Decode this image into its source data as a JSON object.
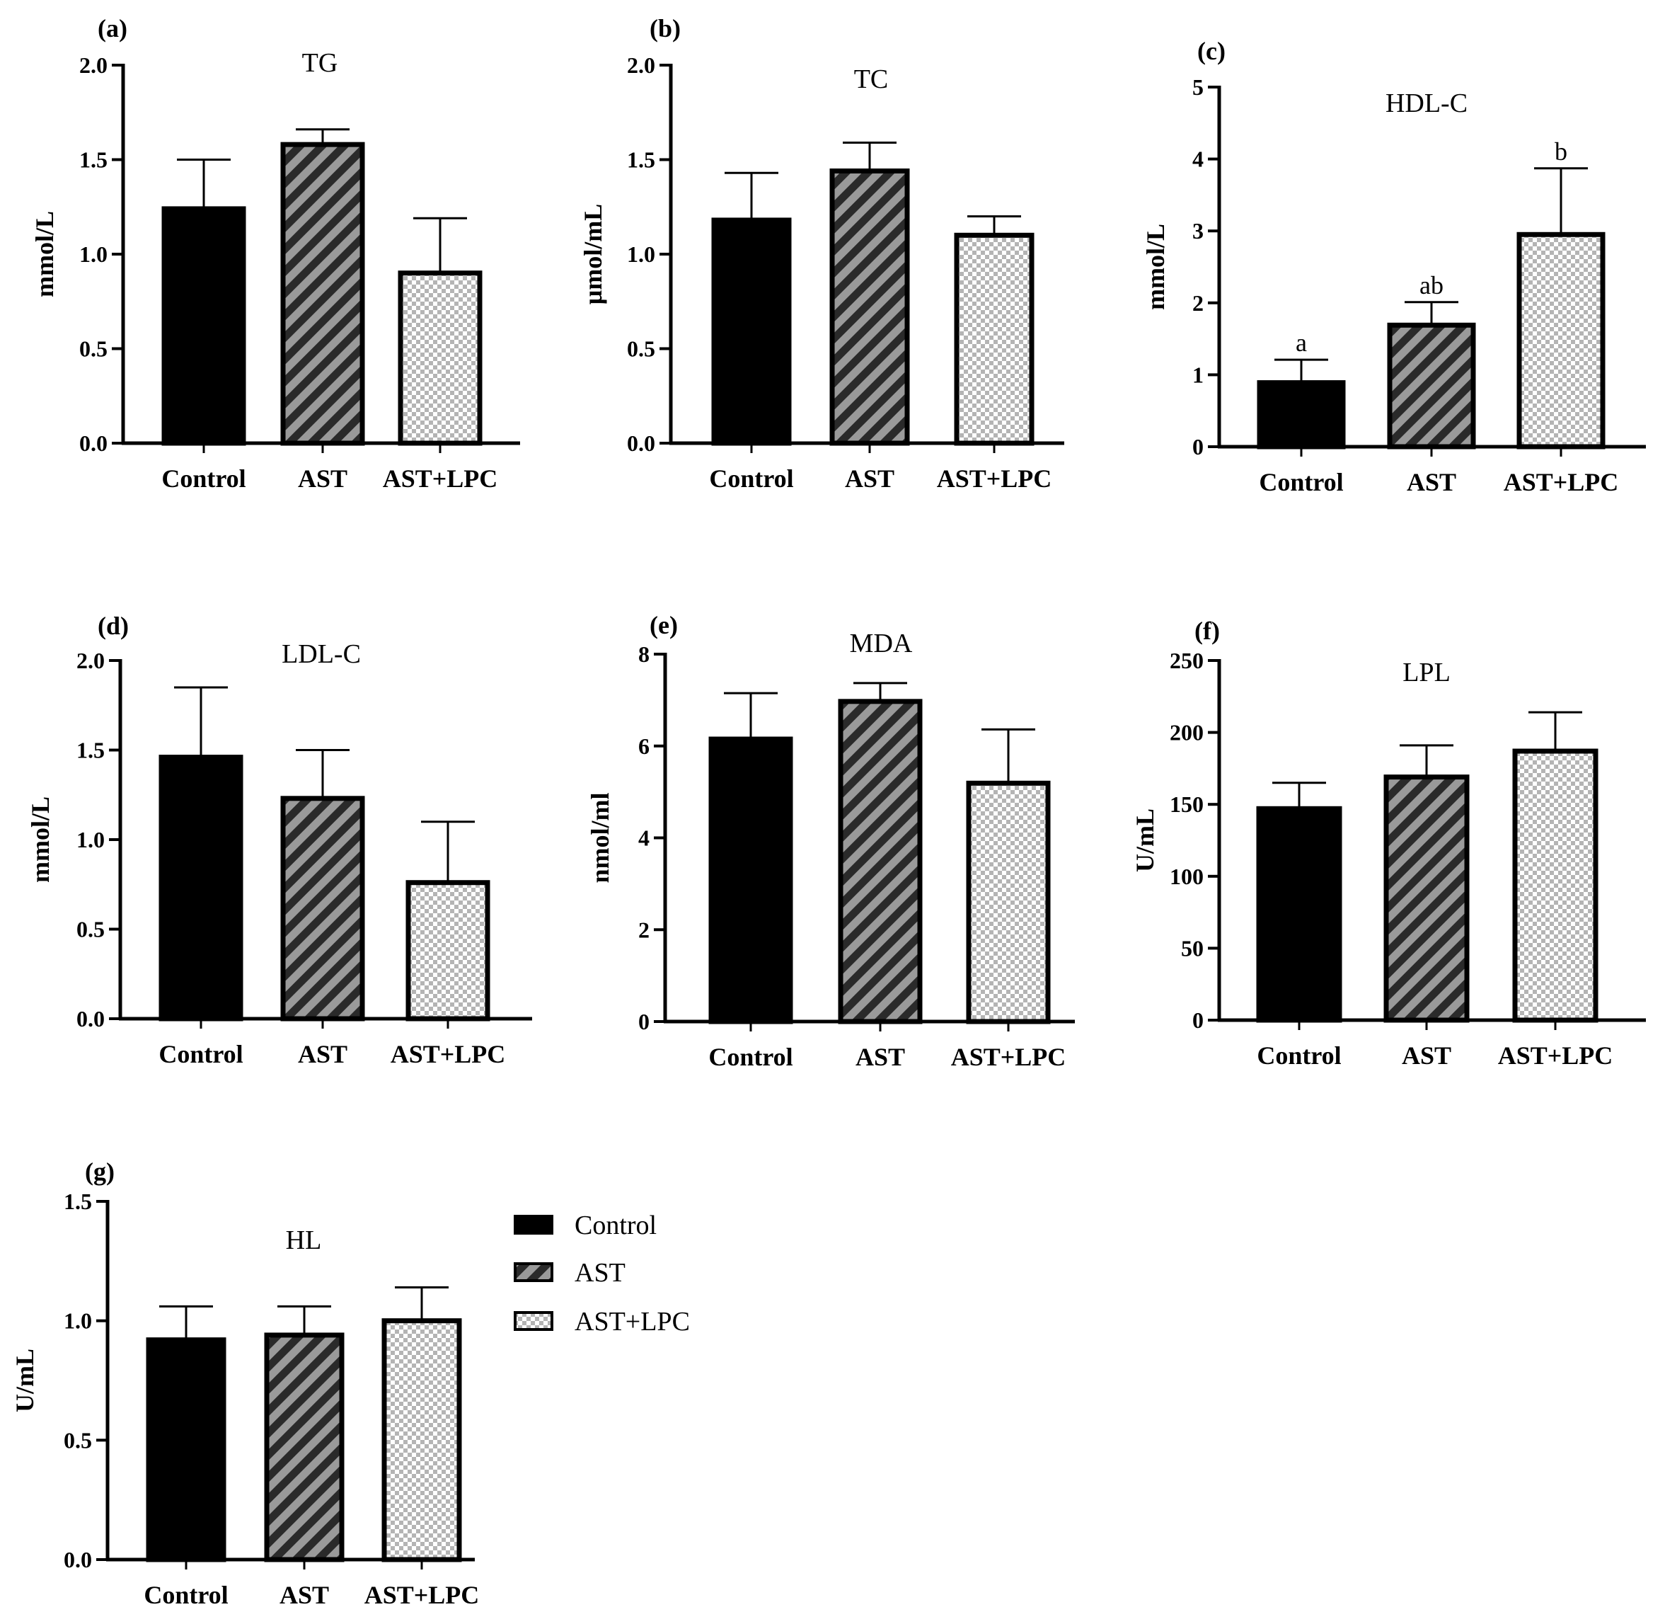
{
  "chart_data": [
    {
      "type": "bar",
      "panel": "(a)",
      "title": "TG",
      "ylabel": "mmol/L",
      "categories": [
        "Control",
        "AST",
        "AST+LPC"
      ],
      "values": [
        1.24,
        1.58,
        0.9
      ],
      "errors": [
        0.26,
        0.08,
        0.29
      ],
      "ylim": [
        0,
        2.0
      ],
      "yticks": [
        "0.0",
        "0.5",
        "1.0",
        "1.5",
        "2.0"
      ],
      "significance": []
    },
    {
      "type": "bar",
      "panel": "(b)",
      "title": "TC",
      "ylabel": "μmol/mL",
      "categories": [
        "Control",
        "AST",
        "AST+LPC"
      ],
      "values": [
        1.18,
        1.44,
        1.1
      ],
      "errors": [
        0.25,
        0.15,
        0.1
      ],
      "ylim": [
        0,
        2.0
      ],
      "yticks": [
        "0.0",
        "0.5",
        "1.0",
        "1.5",
        "2.0"
      ],
      "significance": []
    },
    {
      "type": "bar",
      "panel": "(c)",
      "title": "HDL-C",
      "ylabel": "mmol/L",
      "categories": [
        "Control",
        "AST",
        "AST+LPC"
      ],
      "values": [
        0.89,
        1.69,
        2.95
      ],
      "errors": [
        0.32,
        0.32,
        0.92
      ],
      "ylim": [
        0,
        5
      ],
      "yticks": [
        "0",
        "1",
        "2",
        "3",
        "4",
        "5"
      ],
      "significance": [
        "a",
        "ab",
        "b"
      ]
    },
    {
      "type": "bar",
      "panel": "(d)",
      "title": "LDL-C",
      "ylabel": "mmol/L",
      "categories": [
        "Control",
        "AST",
        "AST+LPC"
      ],
      "values": [
        1.46,
        1.23,
        0.76
      ],
      "errors": [
        0.39,
        0.27,
        0.34
      ],
      "ylim": [
        0,
        2.0
      ],
      "yticks": [
        "0.0",
        "0.5",
        "1.0",
        "1.5",
        "2.0"
      ],
      "significance": []
    },
    {
      "type": "bar",
      "panel": "(e)",
      "title": "MDA",
      "ylabel": "nmol/ml",
      "categories": [
        "Control",
        "AST",
        "AST+LPC"
      ],
      "values": [
        6.15,
        6.97,
        5.19
      ],
      "errors": [
        1.0,
        0.4,
        1.17
      ],
      "ylim": [
        0,
        8
      ],
      "yticks": [
        "0",
        "2",
        "4",
        "6",
        "8"
      ],
      "significance": []
    },
    {
      "type": "bar",
      "panel": "(f)",
      "title": "LPL",
      "ylabel": "U/mL",
      "categories": [
        "Control",
        "AST",
        "AST+LPC"
      ],
      "values": [
        147,
        169,
        187
      ],
      "errors": [
        18,
        22,
        27
      ],
      "ylim": [
        0,
        250
      ],
      "yticks": [
        "0",
        "50",
        "100",
        "150",
        "200",
        "250"
      ],
      "significance": []
    },
    {
      "type": "bar",
      "panel": "(g)",
      "title": "HL",
      "ylabel": "U/mL",
      "categories": [
        "Control",
        "AST",
        "AST+LPC"
      ],
      "values": [
        0.92,
        0.94,
        1.0
      ],
      "errors": [
        0.14,
        0.12,
        0.14
      ],
      "ylim": [
        0,
        1.5
      ],
      "yticks": [
        "0.0",
        "0.5",
        "1.0",
        "1.5"
      ],
      "significance": []
    }
  ],
  "legend": {
    "items": [
      {
        "label": "Control",
        "pattern": "solid"
      },
      {
        "label": "AST",
        "pattern": "stripes"
      },
      {
        "label": "AST+LPC",
        "pattern": "checker"
      }
    ]
  },
  "colors": {
    "bar_fill_control": "#000000",
    "stripe_dark": "#2a2a2a",
    "stripe_light": "#9a9a9a",
    "checker_light": "#ffffff",
    "checker_dark": "#b4b4b4",
    "axis": "#000000"
  }
}
